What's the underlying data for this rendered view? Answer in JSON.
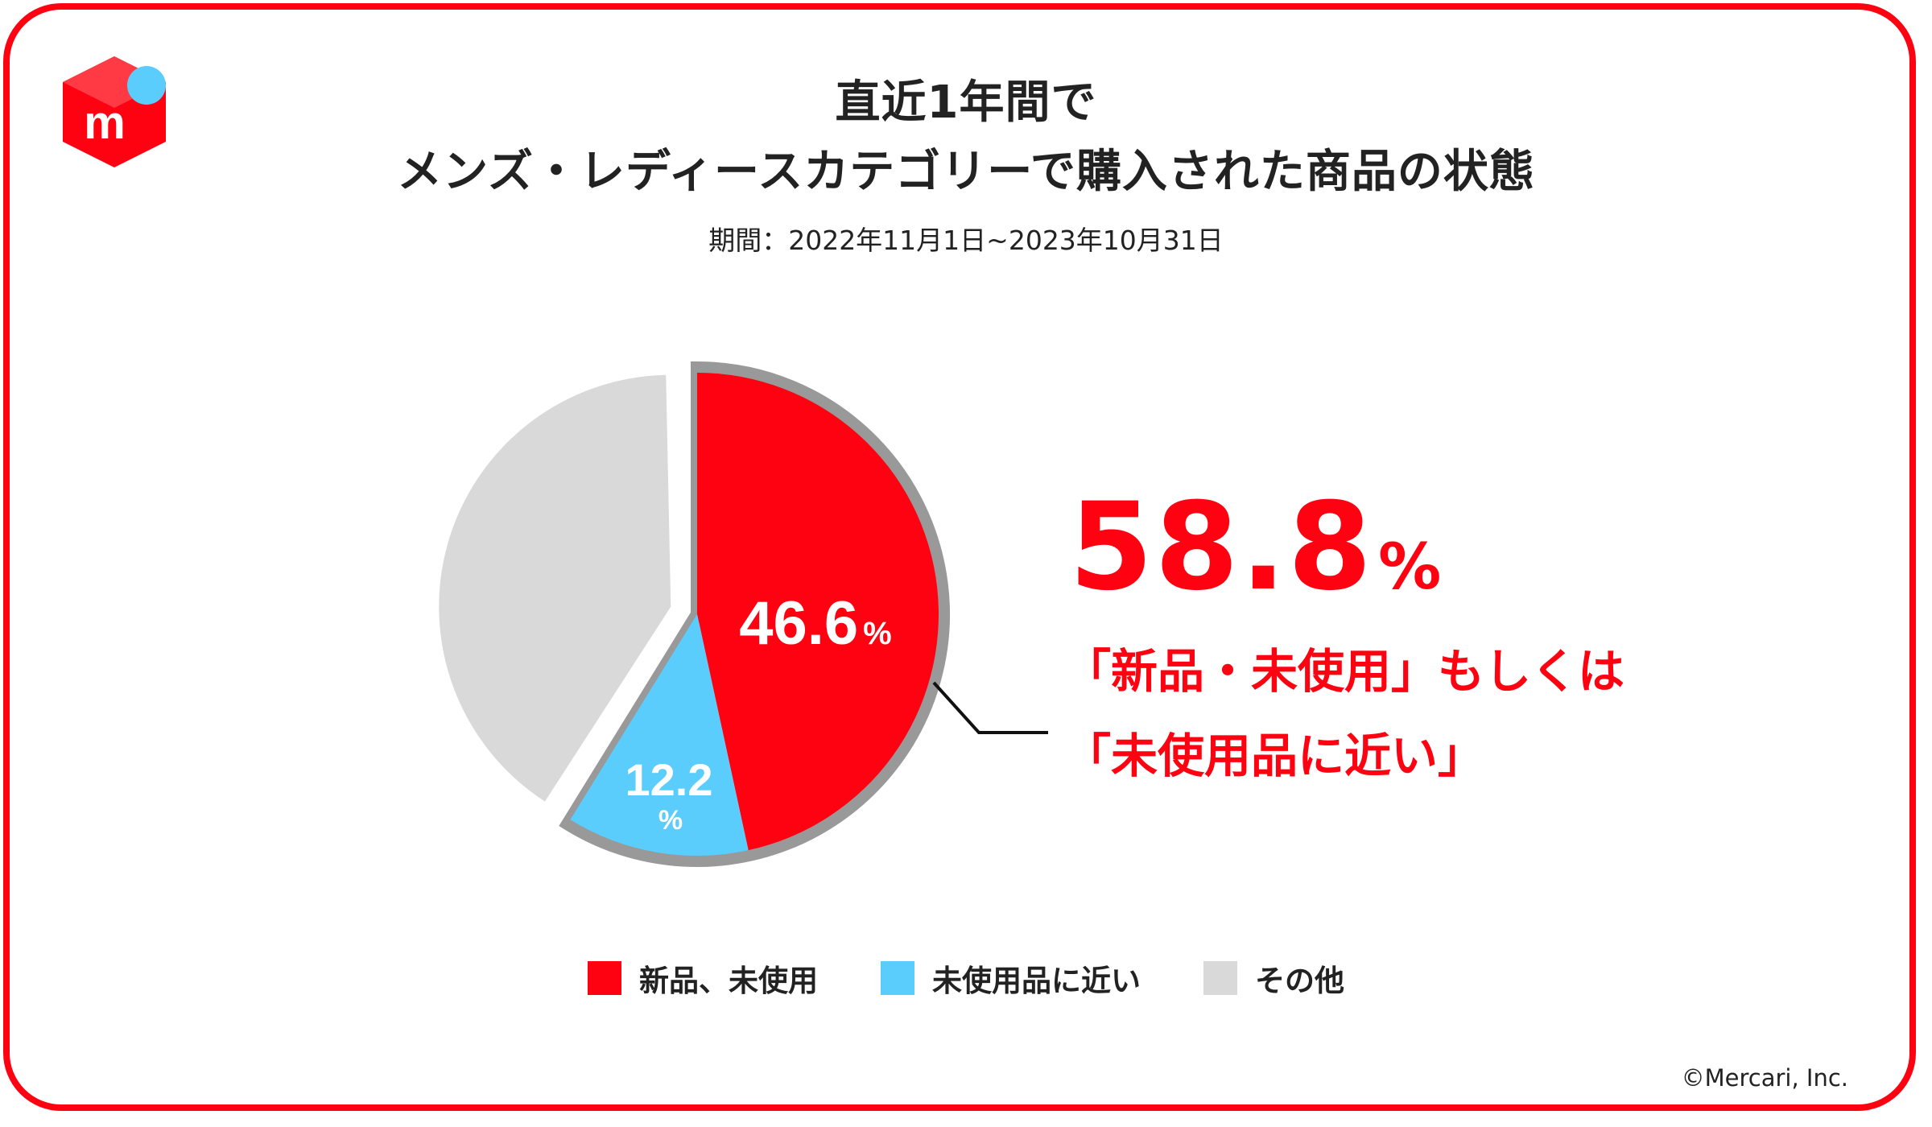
{
  "title_line1": "直近1年間で",
  "title_line2": "メンズ・レディースカテゴリーで購入された商品の状態",
  "subtitle": "期間：2022年11月1日~2023年10月31日",
  "highlight": {
    "value": "58.8",
    "unit": "%",
    "text_line1": "「新品・未使用」もしくは",
    "text_line2": "「未使用品に近い」"
  },
  "copyright": "©Mercari, Inc.",
  "logo": {
    "icon": "mercari-logo-icon",
    "letter": "m"
  },
  "colors": {
    "brand_red": "#ff0211",
    "light_blue": "#5bcdfd",
    "gray": "#d9d9d9",
    "outline_gray": "#999999",
    "text": "#222222"
  },
  "chart_data": {
    "type": "pie",
    "title": "直近1年間で メンズ・レディースカテゴリーで購入された商品の状態",
    "start_angle_deg": 0,
    "direction": "clockwise",
    "slices": [
      {
        "name": "新品、未使用",
        "value": 46.6,
        "label_value": "46.6",
        "label_unit": "%",
        "color": "#ff0211",
        "highlighted": true
      },
      {
        "name": "未使用品に近い",
        "value": 12.2,
        "label_value": "12.2",
        "label_unit": "%",
        "color": "#5bcdfd",
        "highlighted": true
      },
      {
        "name": "その他",
        "value": 41.2,
        "label_value": "",
        "label_unit": "",
        "color": "#d9d9d9",
        "highlighted": false
      }
    ],
    "legend": [
      {
        "label": "新品、未使用",
        "color": "#ff0211"
      },
      {
        "label": "未使用品に近い",
        "color": "#5bcdfd"
      },
      {
        "label": "その他",
        "color": "#d9d9d9"
      }
    ],
    "legend_position": "bottom"
  }
}
